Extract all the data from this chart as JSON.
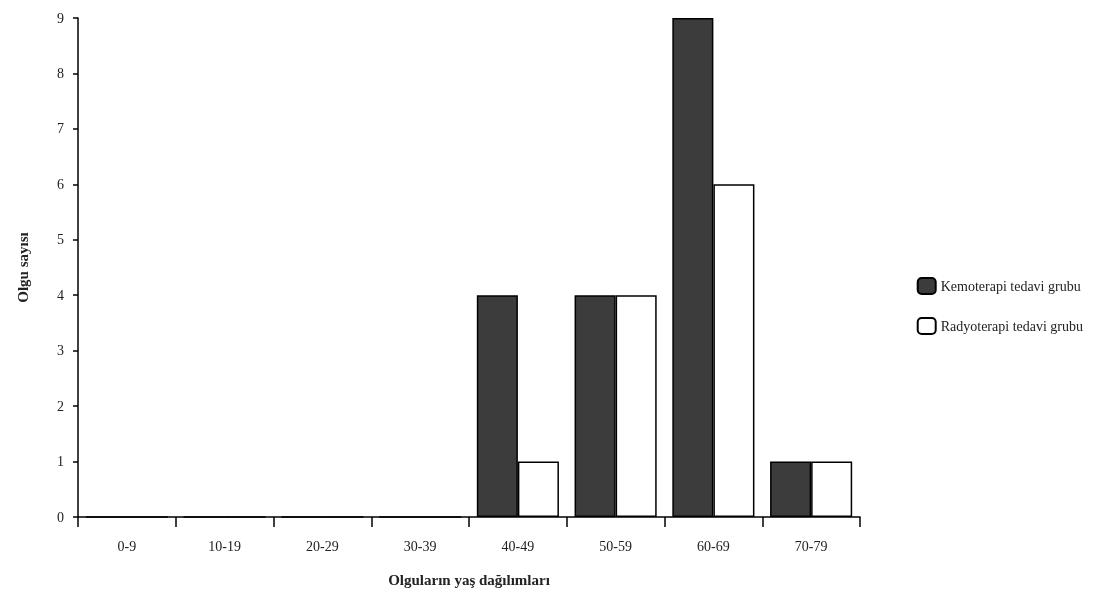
{
  "chart_data": {
    "type": "bar",
    "xlabel": "Olguların yaş dağılımları",
    "ylabel": "Olgu sayısı",
    "categories": [
      "0-9",
      "10-19",
      "20-29",
      "30-39",
      "40-49",
      "50-59",
      "60-69",
      "70-79"
    ],
    "series": [
      {
        "name": "Kemoterapi tedavi grubu",
        "color": "#3c3c3c",
        "values": [
          0,
          0,
          0,
          0,
          4,
          4,
          9,
          1
        ]
      },
      {
        "name": "Radyoterapi tedavi grubu",
        "color": "#ffffff",
        "values": [
          0,
          0,
          0,
          0,
          1,
          4,
          6,
          1
        ]
      }
    ],
    "ylim": [
      0,
      9
    ],
    "yticks": [
      0,
      1,
      2,
      3,
      4,
      5,
      6,
      7,
      8,
      9
    ],
    "grid": false,
    "legend": "right"
  }
}
